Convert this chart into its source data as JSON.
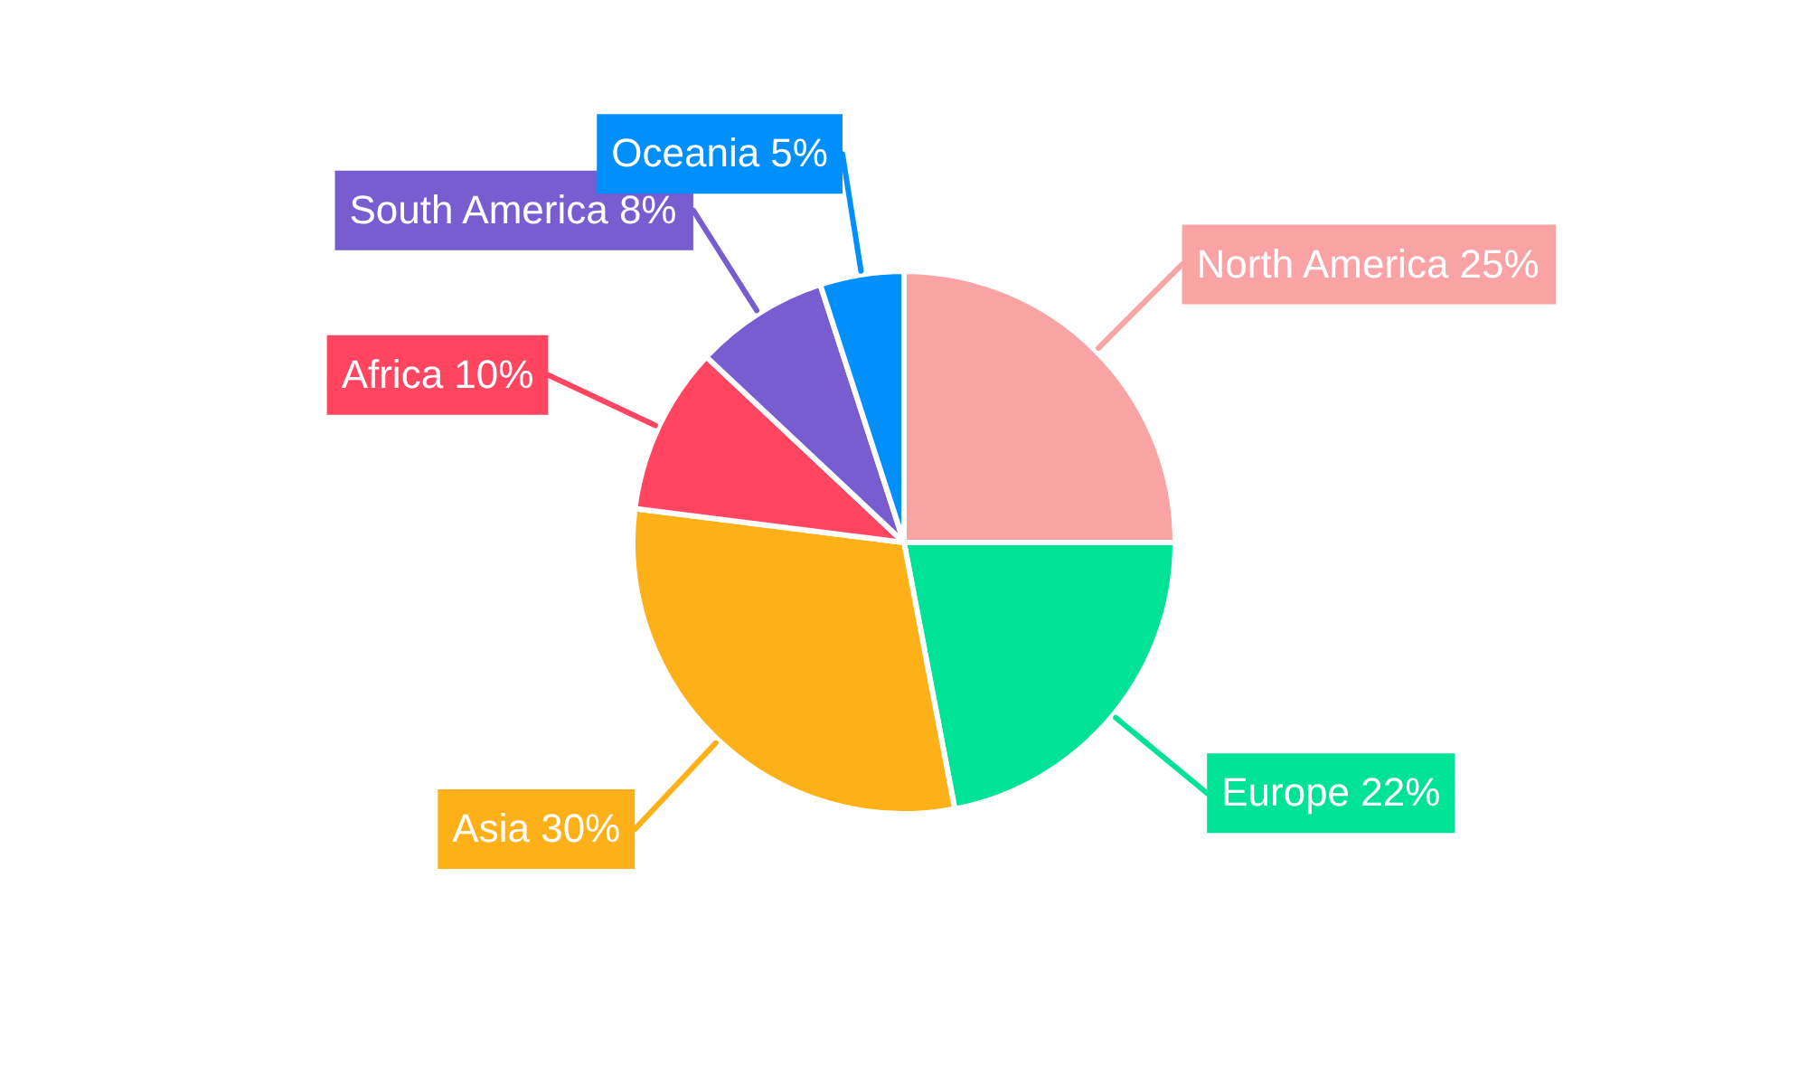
{
  "chart_data": {
    "type": "pie",
    "categories": [
      "North America",
      "Europe",
      "Asia",
      "Africa",
      "South America",
      "Oceania"
    ],
    "values": [
      25,
      22,
      30,
      10,
      8,
      5
    ],
    "value_labels": [
      "25%",
      "22%",
      "30%",
      "10%",
      "8%",
      "5%"
    ],
    "colors": [
      "#f9a3a4",
      "#00e396",
      "#feb019",
      "#ff4560",
      "#775dd0",
      "#008ffb"
    ],
    "legend": false
  }
}
